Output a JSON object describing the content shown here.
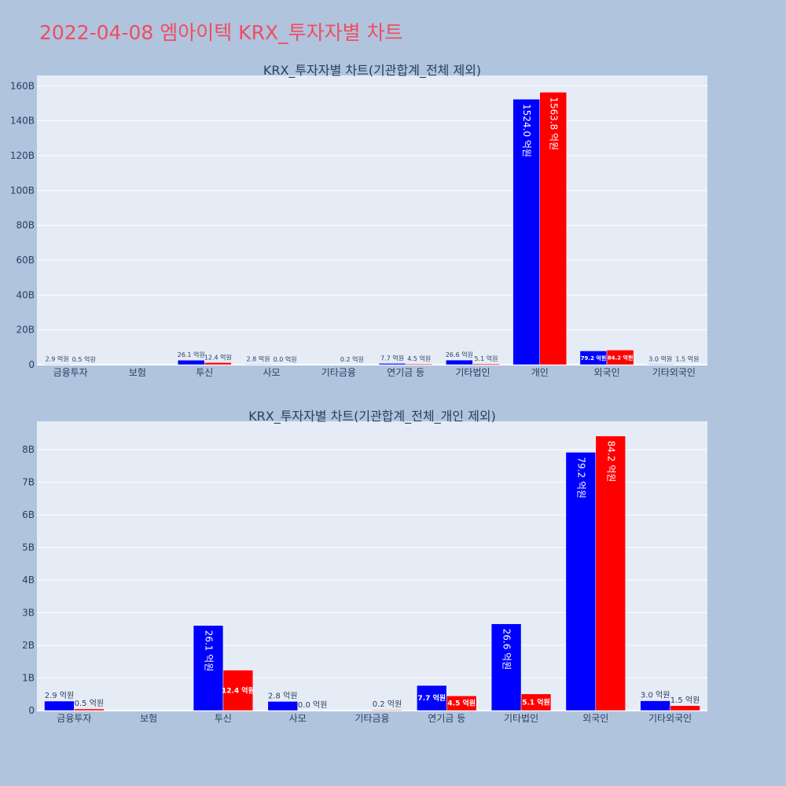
{
  "title": "2022-04-08 엠아이텍 KRX_투자자별 차트",
  "colors": {
    "buy": "#0000ff",
    "sell": "#ff0000",
    "plot_bg": "#e5ecf6",
    "page_bg": "#b0c4de",
    "title": "#ef4d5f"
  },
  "chart_data": [
    {
      "type": "bar",
      "title": "KRX_투자자별 차트(기관합계_전체 제외)",
      "categories": [
        "금융투자",
        "보험",
        "투신",
        "사모",
        "기타금융",
        "연기금 등",
        "기타법인",
        "개인",
        "외국인",
        "기타외국인"
      ],
      "series": [
        {
          "values": [
            290000000,
            null,
            2610000000,
            280000000,
            null,
            770000000,
            2660000000,
            152400000000,
            7920000000,
            300000000
          ],
          "labels": [
            "2.9 억원",
            "",
            "26.1 억원",
            "2.8 억원",
            "",
            "7.7 억원",
            "26.6 억원",
            "1524.0 억원",
            "79.2 억원",
            "3.0 억원"
          ]
        },
        {
          "values": [
            50000000,
            null,
            1240000000,
            0,
            20000000,
            450000000,
            510000000,
            156380000000,
            8420000000,
            150000000
          ],
          "labels": [
            "0.5 억원",
            "",
            "12.4 억원",
            "0.0 억원",
            "0.2 억원",
            "4.5 억원",
            "5.1 억원",
            "1563.8 억원",
            "84.2 억원",
            "1.5 억원"
          ]
        }
      ],
      "ylim": [
        0,
        166000000000
      ],
      "yticks": [
        0,
        20000000000,
        40000000000,
        60000000000,
        80000000000,
        100000000000,
        120000000000,
        140000000000,
        160000000000
      ],
      "ytick_labels": [
        "0",
        "20B",
        "40B",
        "60B",
        "80B",
        "100B",
        "120B",
        "140B",
        "160B"
      ],
      "grid": true,
      "legend": "none"
    },
    {
      "type": "bar",
      "title": "KRX_투자자별 차트(기관합계_전체_개인 제외)",
      "categories": [
        "금융투자",
        "보험",
        "투신",
        "사모",
        "기타금융",
        "연기금 등",
        "기타법인",
        "외국인",
        "기타외국인"
      ],
      "series": [
        {
          "values": [
            290000000,
            null,
            2610000000,
            280000000,
            null,
            770000000,
            2660000000,
            7920000000,
            300000000
          ],
          "labels": [
            "2.9 억원",
            "",
            "26.1 억원",
            "2.8 억원",
            "",
            "7.7 억원",
            "26.6 억원",
            "79.2 억원",
            "3.0 억원"
          ]
        },
        {
          "values": [
            50000000,
            null,
            1240000000,
            0,
            20000000,
            450000000,
            510000000,
            8420000000,
            150000000
          ],
          "labels": [
            "0.5 억원",
            "",
            "12.4 억원",
            "0.0 억원",
            "0.2 억원",
            "4.5 억원",
            "5.1 억원",
            "84.2 억원",
            "1.5 억원"
          ]
        }
      ],
      "ylim": [
        0,
        8870000000
      ],
      "yticks": [
        0,
        1000000000,
        2000000000,
        3000000000,
        4000000000,
        5000000000,
        6000000000,
        7000000000,
        8000000000
      ],
      "ytick_labels": [
        "0",
        "1B",
        "2B",
        "3B",
        "4B",
        "5B",
        "6B",
        "7B",
        "8B"
      ],
      "grid": true,
      "legend": "none"
    }
  ]
}
